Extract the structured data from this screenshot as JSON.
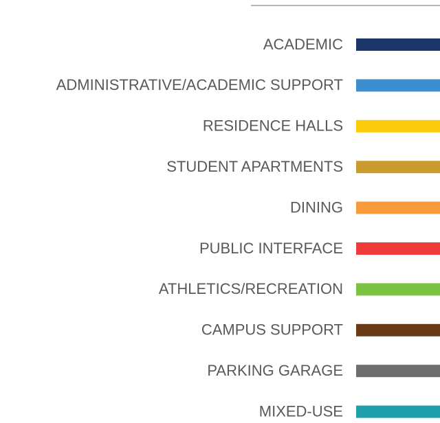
{
  "legend": {
    "items": [
      {
        "label": "ACADEMIC",
        "color": "#1b3668"
      },
      {
        "label": "ADMINISTRATIVE/ACADEMIC SUPPORT",
        "color": "#3d8ecf"
      },
      {
        "label": "RESIDENCE HALLS",
        "color": "#fccc0a"
      },
      {
        "label": "STUDENT APARTMENTS",
        "color": "#c99a2e"
      },
      {
        "label": "DINING",
        "color": "#f89a3a"
      },
      {
        "label": "PUBLIC INTERFACE",
        "color": "#ef3b39"
      },
      {
        "label": "ATHLETICS/RECREATION",
        "color": "#7cc242"
      },
      {
        "label": "CAMPUS SUPPORT",
        "color": "#6b3a17"
      },
      {
        "label": "PARKING GARAGE",
        "color": "#6d6e70"
      },
      {
        "label": "MIXED-USE",
        "color": "#1fa0aa"
      }
    ]
  }
}
